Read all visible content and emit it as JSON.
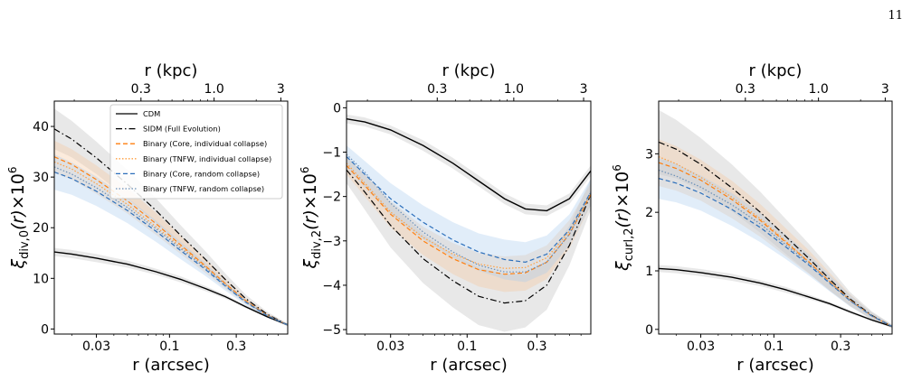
{
  "page_number": "11",
  "colors": {
    "cdm": "#000000",
    "sidm": "#000000",
    "binary_core_individual": "#ff7f0e",
    "binary_tnfw_individual": "#ff9f3f",
    "binary_core_random": "#2c6fbb",
    "binary_tnfw_random": "#6a8fb7",
    "band_grey": "#bdbdbd",
    "band_orange": "#f5c79a",
    "band_blue": "#a9cbef"
  },
  "chart_data": [
    {
      "type": "line",
      "panel": "left",
      "xscale": "log",
      "xlabel": "r (arcsec)",
      "x2label": "r (kpc)",
      "ylabel": "ξ_div,0(r)×10^6",
      "xlim": [
        0.015,
        0.7
      ],
      "ylim": [
        -1,
        45
      ],
      "xticks": [
        0.03,
        0.1,
        0.3
      ],
      "xticklabels": [
        "0.03",
        "0.1",
        "0.3"
      ],
      "x2ticks": [
        0.3,
        1.0,
        3
      ],
      "x2ticklabels": [
        "0.3",
        "1.0",
        "3"
      ],
      "kpc_per_arcsec": 4.8,
      "yticks": [
        0,
        10,
        20,
        30,
        40
      ],
      "yticklabels": [
        "0",
        "10",
        "20",
        "30",
        "40"
      ],
      "legend": "upper-right",
      "x": [
        0.015,
        0.02,
        0.03,
        0.05,
        0.08,
        0.12,
        0.18,
        0.25,
        0.35,
        0.5,
        0.7
      ],
      "series": [
        {
          "name": "CDM",
          "style": "solid",
          "color_key": "cdm",
          "band": "band_grey",
          "band_width": [
            0.8,
            0.8,
            0.8,
            0.7,
            0.6,
            0.6,
            0.5,
            0.4,
            0.3,
            0.2,
            0.2
          ],
          "values": [
            15.2,
            14.8,
            14.0,
            12.8,
            11.3,
            9.8,
            8.0,
            6.4,
            4.4,
            2.4,
            0.8
          ]
        },
        {
          "name": "SIDM (Full Evolution)",
          "style": "dashdot",
          "color_key": "sidm",
          "band": "band_grey",
          "band_width": [
            4.0,
            3.6,
            3.2,
            2.8,
            2.4,
            2.0,
            1.6,
            1.2,
            0.8,
            0.5,
            0.3
          ],
          "values": [
            39.5,
            37.5,
            33.8,
            28.6,
            23.4,
            18.5,
            13.8,
            9.8,
            6.0,
            2.9,
            0.8
          ]
        },
        {
          "name": "Binary (Core, individual collapse)",
          "style": "dashed",
          "color_key": "binary_core_individual",
          "band": "band_orange",
          "band_width": [
            3.2,
            3.0,
            2.8,
            2.5,
            2.2,
            1.8,
            1.4,
            1.0,
            0.6,
            0.4,
            0.2
          ],
          "values": [
            34.0,
            32.5,
            29.5,
            25.3,
            20.8,
            16.6,
            12.5,
            9.0,
            5.6,
            2.7,
            0.8
          ]
        },
        {
          "name": "Binary (TNFW, individual collapse)",
          "style": "dotted",
          "color_key": "binary_tnfw_individual",
          "band": "band_orange",
          "band_width": [
            0,
            0,
            0,
            0,
            0,
            0,
            0,
            0,
            0,
            0,
            0
          ],
          "values": [
            33.0,
            31.6,
            28.7,
            24.6,
            20.2,
            16.2,
            12.3,
            8.9,
            5.5,
            2.7,
            0.8
          ]
        },
        {
          "name": "Binary (Core, random collapse)",
          "style": "dashed",
          "color_key": "binary_core_random",
          "band": "band_blue",
          "band_width": [
            3.5,
            3.2,
            2.9,
            2.5,
            2.1,
            1.7,
            1.3,
            0.9,
            0.6,
            0.4,
            0.2
          ],
          "values": [
            31.0,
            29.7,
            27.2,
            23.4,
            19.3,
            15.5,
            11.8,
            8.5,
            5.3,
            2.6,
            0.8
          ]
        },
        {
          "name": "Binary (TNFW, random collapse)",
          "style": "dotted",
          "color_key": "binary_tnfw_random",
          "band": "band_blue",
          "band_width": [
            0,
            0,
            0,
            0,
            0,
            0,
            0,
            0,
            0,
            0,
            0
          ],
          "values": [
            32.0,
            30.6,
            27.9,
            24.0,
            19.8,
            15.9,
            12.1,
            8.7,
            5.4,
            2.7,
            0.8
          ]
        }
      ]
    },
    {
      "type": "line",
      "panel": "middle",
      "xscale": "log",
      "xlabel": "r (arcsec)",
      "x2label": "r (kpc)",
      "ylabel": "ξ_div,2(r)×10^6",
      "xlim": [
        0.015,
        0.7
      ],
      "ylim": [
        -5.1,
        0.15
      ],
      "xticks": [
        0.03,
        0.1,
        0.3
      ],
      "xticklabels": [
        "0.03",
        "0.1",
        "0.3"
      ],
      "x2ticks": [
        0.3,
        1.0,
        3
      ],
      "x2ticklabels": [
        "0.3",
        "1.0",
        "3"
      ],
      "kpc_per_arcsec": 4.8,
      "yticks": [
        0,
        -1,
        -2,
        -3,
        -4,
        -5
      ],
      "yticklabels": [
        "0",
        "−1",
        "−2",
        "−3",
        "−4",
        "−5"
      ],
      "x": [
        0.015,
        0.02,
        0.03,
        0.05,
        0.08,
        0.12,
        0.18,
        0.25,
        0.35,
        0.5,
        0.7
      ],
      "series": [
        {
          "name": "CDM",
          "style": "solid",
          "color_key": "cdm",
          "band": "band_grey",
          "band_width": [
            0.1,
            0.1,
            0.1,
            0.12,
            0.12,
            0.12,
            0.12,
            0.12,
            0.12,
            0.12,
            0.12
          ],
          "values": [
            -0.25,
            -0.32,
            -0.5,
            -0.85,
            -1.25,
            -1.65,
            -2.05,
            -2.28,
            -2.32,
            -2.05,
            -1.42
          ]
        },
        {
          "name": "SIDM (Full Evolution)",
          "style": "dashdot",
          "color_key": "sidm",
          "band": "band_grey",
          "band_width": [
            0.3,
            0.4,
            0.5,
            0.55,
            0.6,
            0.65,
            0.65,
            0.6,
            0.55,
            0.45,
            0.35
          ],
          "values": [
            -1.4,
            -1.9,
            -2.65,
            -3.4,
            -3.9,
            -4.25,
            -4.4,
            -4.35,
            -4.0,
            -3.1,
            -1.95
          ]
        },
        {
          "name": "Binary (Core, individual collapse)",
          "style": "dashed",
          "color_key": "binary_core_individual",
          "band": "band_orange",
          "band_width": [
            0.2,
            0.25,
            0.3,
            0.32,
            0.35,
            0.38,
            0.4,
            0.4,
            0.38,
            0.32,
            0.25
          ],
          "values": [
            -1.3,
            -1.75,
            -2.4,
            -3.0,
            -3.4,
            -3.65,
            -3.75,
            -3.72,
            -3.48,
            -2.85,
            -1.95
          ]
        },
        {
          "name": "Binary (TNFW, individual collapse)",
          "style": "dotted",
          "color_key": "binary_tnfw_individual",
          "band": "band_orange",
          "band_width": [
            0,
            0,
            0,
            0,
            0,
            0,
            0,
            0,
            0,
            0,
            0
          ],
          "values": [
            -1.25,
            -1.7,
            -2.35,
            -2.92,
            -3.3,
            -3.52,
            -3.62,
            -3.6,
            -3.38,
            -2.78,
            -1.92
          ]
        },
        {
          "name": "Binary (Core, random collapse)",
          "style": "dashed",
          "color_key": "binary_core_random",
          "band": "band_blue",
          "band_width": [
            0.25,
            0.3,
            0.35,
            0.38,
            0.4,
            0.42,
            0.45,
            0.45,
            0.42,
            0.35,
            0.3
          ],
          "values": [
            -1.1,
            -1.5,
            -2.05,
            -2.58,
            -2.98,
            -3.25,
            -3.42,
            -3.48,
            -3.3,
            -2.75,
            -1.9
          ]
        },
        {
          "name": "Binary (TNFW, random collapse)",
          "style": "dotted",
          "color_key": "binary_tnfw_random",
          "band": "band_blue",
          "band_width": [
            0,
            0,
            0,
            0,
            0,
            0,
            0,
            0,
            0,
            0,
            0
          ],
          "values": [
            -1.05,
            -1.45,
            -2.15,
            -2.8,
            -3.25,
            -3.55,
            -3.7,
            -3.7,
            -3.48,
            -2.85,
            -1.9
          ]
        }
      ]
    },
    {
      "type": "line",
      "panel": "right",
      "xscale": "log",
      "xlabel": "r (arcsec)",
      "x2label": "r (kpc)",
      "ylabel": "ξ_curl,2(r)×10^6",
      "xlim": [
        0.015,
        0.7
      ],
      "ylim": [
        -0.08,
        3.9
      ],
      "xticks": [
        0.03,
        0.1,
        0.3
      ],
      "xticklabels": [
        "0.03",
        "0.1",
        "0.3"
      ],
      "x2ticks": [
        0.3,
        1.0,
        3
      ],
      "x2ticklabels": [
        "0.3",
        "1.0",
        "3"
      ],
      "kpc_per_arcsec": 4.8,
      "yticks": [
        0,
        1,
        2,
        3
      ],
      "yticklabels": [
        "0",
        "1",
        "2",
        "3"
      ],
      "x": [
        0.015,
        0.02,
        0.03,
        0.05,
        0.08,
        0.12,
        0.18,
        0.25,
        0.35,
        0.5,
        0.7
      ],
      "series": [
        {
          "name": "CDM",
          "style": "solid",
          "color_key": "cdm",
          "band": "band_grey",
          "band_width": [
            0.06,
            0.06,
            0.06,
            0.06,
            0.05,
            0.05,
            0.04,
            0.03,
            0.03,
            0.02,
            0.02
          ],
          "values": [
            1.04,
            1.02,
            0.97,
            0.89,
            0.79,
            0.68,
            0.55,
            0.44,
            0.3,
            0.16,
            0.05
          ]
        },
        {
          "name": "SIDM (Full Evolution)",
          "style": "dashdot",
          "color_key": "sidm",
          "band": "band_grey",
          "band_width": [
            0.55,
            0.5,
            0.45,
            0.4,
            0.35,
            0.3,
            0.25,
            0.2,
            0.12,
            0.07,
            0.03
          ],
          "values": [
            3.2,
            3.08,
            2.82,
            2.42,
            2.0,
            1.6,
            1.2,
            0.86,
            0.52,
            0.24,
            0.05
          ]
        },
        {
          "name": "Binary (Core, individual collapse)",
          "style": "dashed",
          "color_key": "binary_core_individual",
          "band": "band_orange",
          "band_width": [
            0.4,
            0.38,
            0.35,
            0.32,
            0.28,
            0.24,
            0.2,
            0.15,
            0.1,
            0.06,
            0.03
          ],
          "values": [
            2.85,
            2.75,
            2.55,
            2.22,
            1.86,
            1.5,
            1.14,
            0.82,
            0.5,
            0.23,
            0.05
          ]
        },
        {
          "name": "Binary (TNFW, individual collapse)",
          "style": "dotted",
          "color_key": "binary_tnfw_individual",
          "band": "band_orange",
          "band_width": [
            0,
            0,
            0,
            0,
            0,
            0,
            0,
            0,
            0,
            0,
            0
          ],
          "values": [
            2.95,
            2.83,
            2.6,
            2.26,
            1.89,
            1.52,
            1.15,
            0.82,
            0.5,
            0.23,
            0.05
          ]
        },
        {
          "name": "Binary (Core, random collapse)",
          "style": "dashed",
          "color_key": "binary_core_random",
          "band": "band_blue",
          "band_width": [
            0.35,
            0.33,
            0.3,
            0.28,
            0.25,
            0.21,
            0.18,
            0.14,
            0.1,
            0.06,
            0.03
          ],
          "values": [
            2.58,
            2.5,
            2.33,
            2.05,
            1.74,
            1.42,
            1.09,
            0.79,
            0.49,
            0.23,
            0.05
          ]
        },
        {
          "name": "Binary (TNFW, random collapse)",
          "style": "dotted",
          "color_key": "binary_tnfw_random",
          "band": "band_blue",
          "band_width": [
            0,
            0,
            0,
            0,
            0,
            0,
            0,
            0,
            0,
            0,
            0
          ],
          "values": [
            2.72,
            2.62,
            2.43,
            2.13,
            1.8,
            1.46,
            1.12,
            0.8,
            0.49,
            0.23,
            0.05
          ]
        }
      ]
    }
  ]
}
